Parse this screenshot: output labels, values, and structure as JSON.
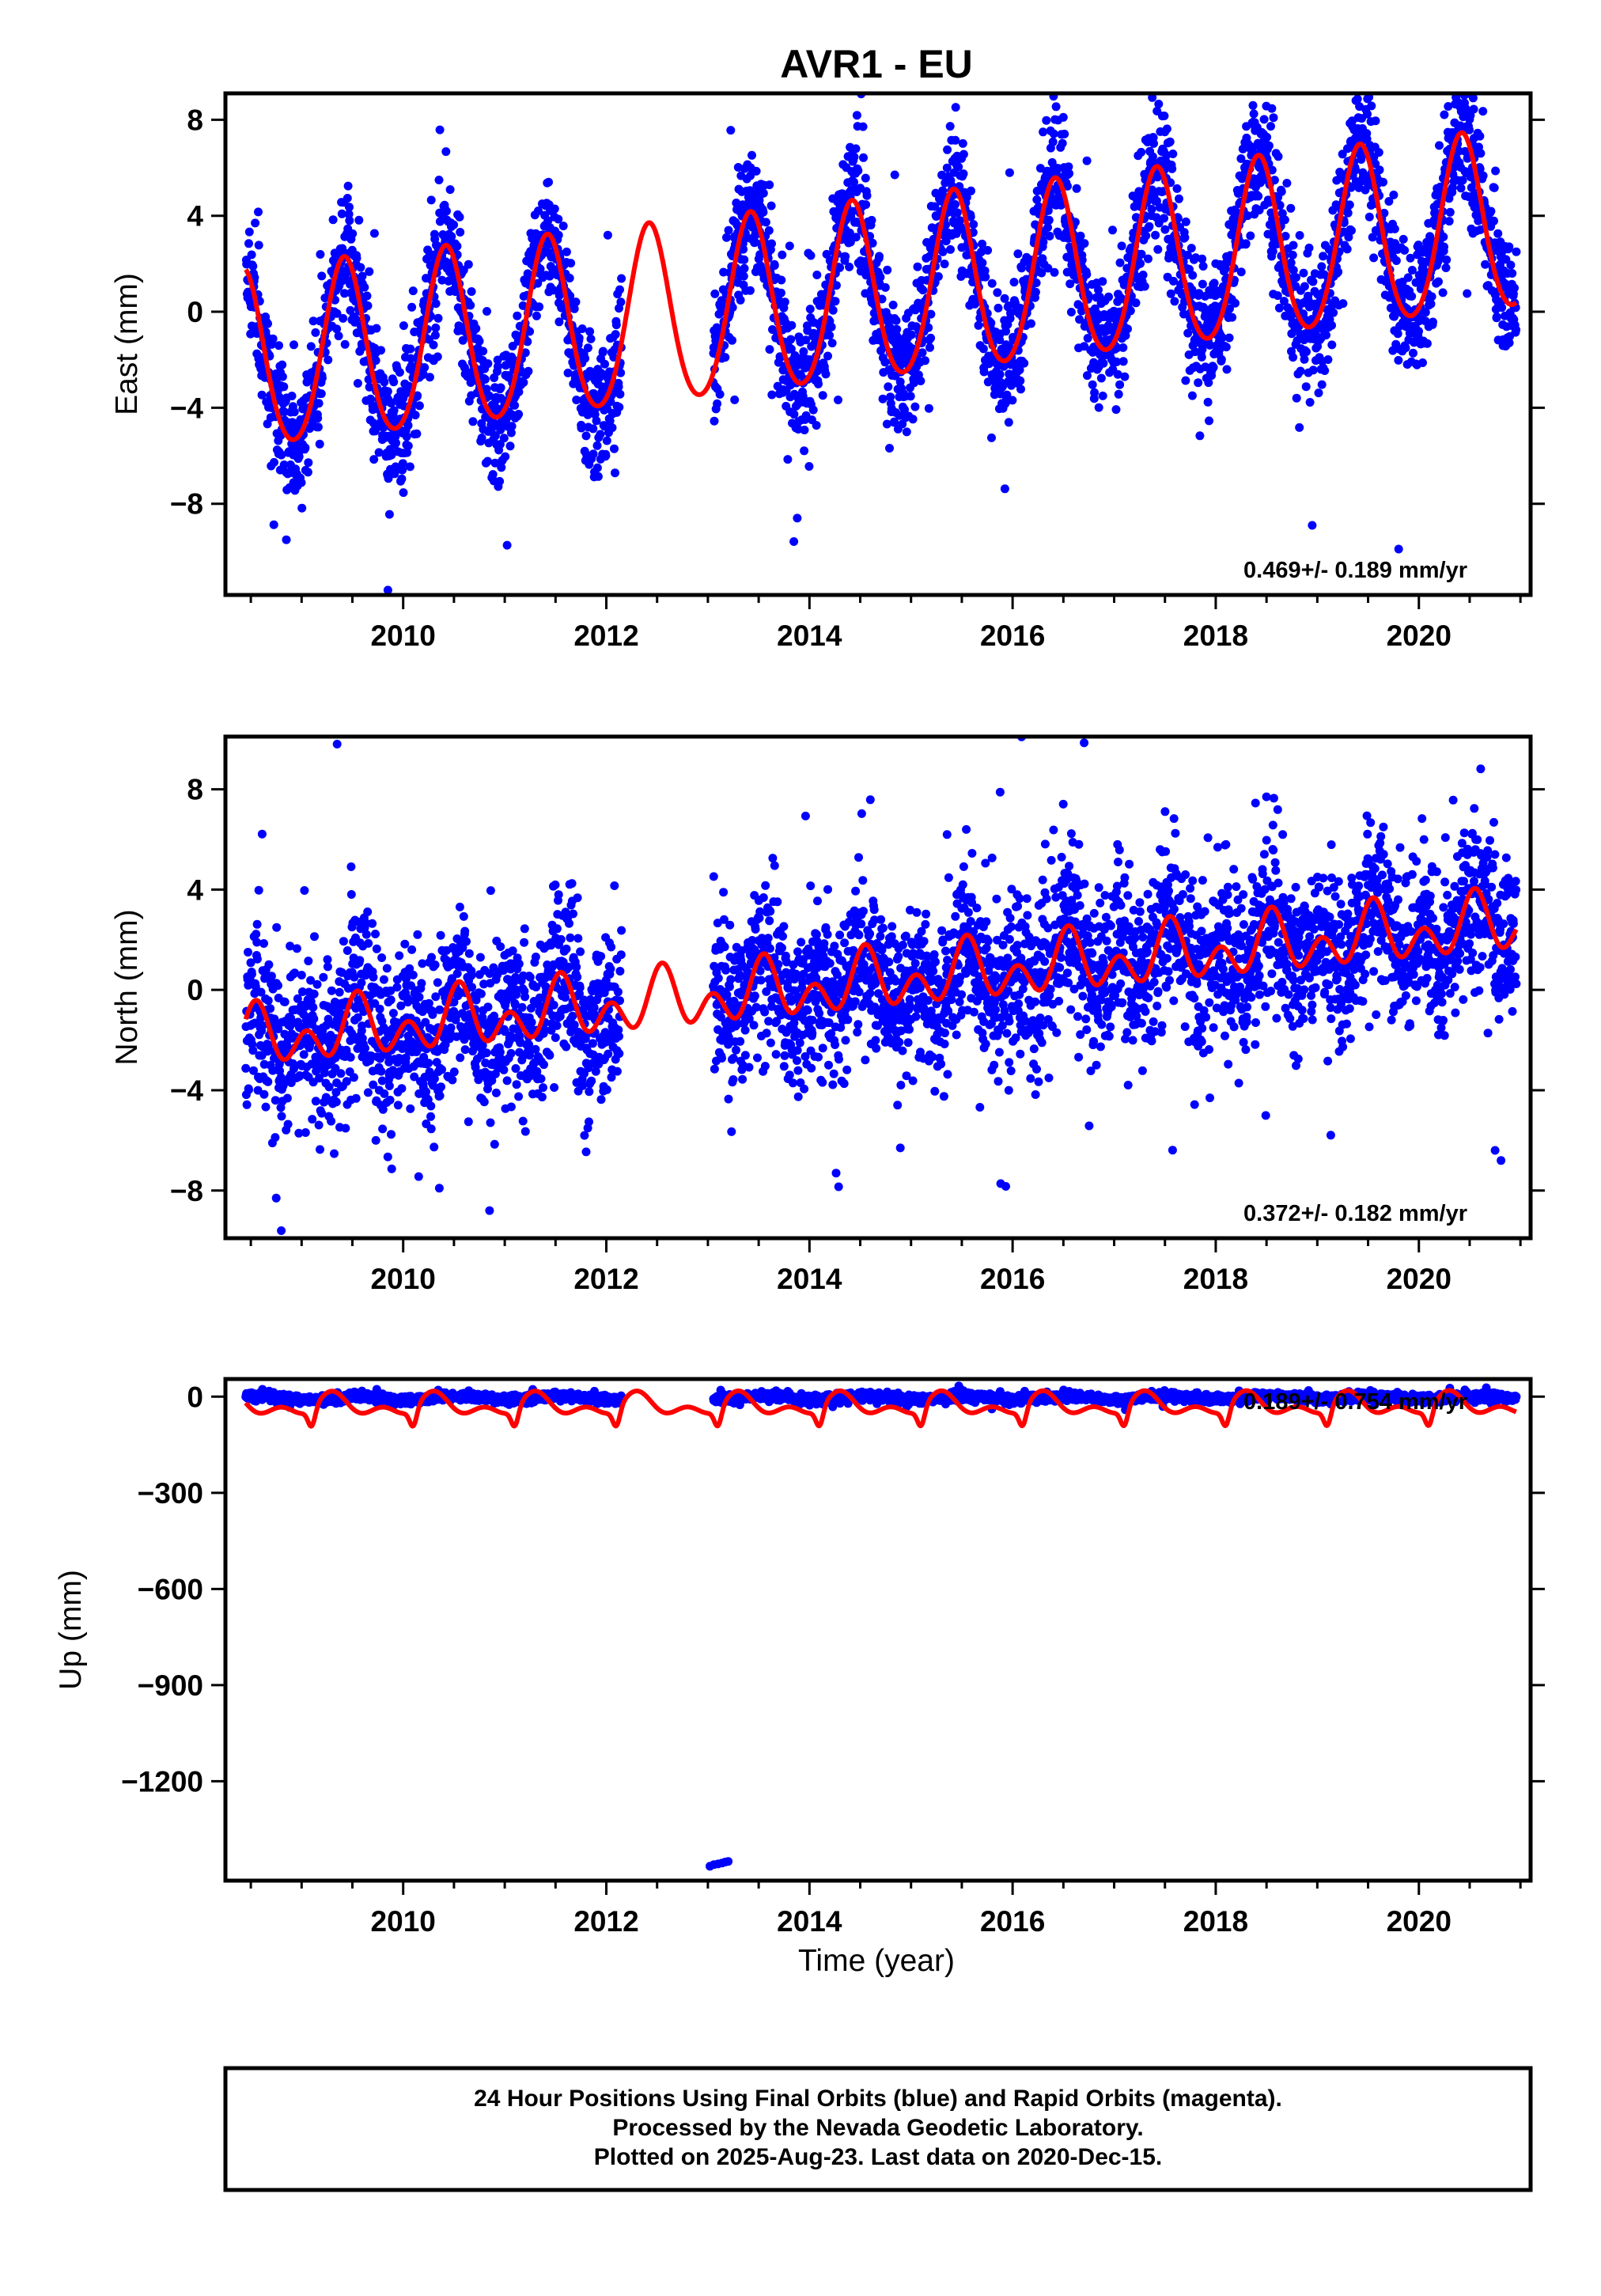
{
  "title": "AVR1 - EU",
  "x_axis": {
    "label": "Time (year)",
    "ticks": [
      2010,
      2012,
      2014,
      2016,
      2018,
      2020
    ],
    "range": [
      2008.25,
      2021.1
    ]
  },
  "colors": {
    "final_orbits": "#0000ff",
    "model_fit": "#ff0000",
    "frame": "#000000"
  },
  "chart_data": [
    {
      "type": "scatter",
      "component": "East",
      "ylabel": "East (mm)",
      "yticks": [
        8,
        4,
        0,
        -4,
        -8
      ],
      "ylim": [
        -11.8,
        9.1
      ],
      "rate_text": "0.469+/- 0.189 mm/yr",
      "data_span": [
        2008.45,
        2020.96
      ],
      "gap": [
        2012.15,
        2013.05
      ],
      "series": [
        {
          "name": "Final Orbits (blue)",
          "model": {
            "offset": -2.2,
            "trend": 0.469,
            "annual_amp": 3.7,
            "annual_peak": 0.42,
            "semi_amp": 0.35,
            "noise": 1.3
          }
        },
        {
          "name": "model fit",
          "model": {
            "offset": -2.2,
            "trend": 0.469,
            "annual_amp": 3.7,
            "annual_peak": 0.42,
            "semi_amp": 0.35
          }
        }
      ],
      "outliers": [
        [
          2008.85,
          -9.5
        ],
        [
          2009.85,
          -11.6
        ],
        [
          2013.88,
          -8.6
        ],
        [
          2018.95,
          -8.9
        ],
        [
          2016.5,
          8.1
        ],
        [
          2020.45,
          8.7
        ]
      ]
    },
    {
      "type": "scatter",
      "component": "North",
      "ylabel": "North (mm)",
      "yticks": [
        8,
        4,
        0,
        -4,
        -8
      ],
      "ylim": [
        -9.9,
        10.1
      ],
      "rate_text": "0.372+/- 0.182 mm/yr",
      "data_span": [
        2008.45,
        2020.96
      ],
      "gap": [
        2012.15,
        2013.05
      ],
      "series": [
        {
          "name": "Final Orbits (blue)",
          "model": {
            "offset": -2.0,
            "trend": 0.372,
            "annual_amp": 0.7,
            "annual_peak": 0.55,
            "semi_amp": 0.85,
            "noise": 1.6
          }
        },
        {
          "name": "model fit",
          "model": {
            "offset": -2.0,
            "trend": 0.372,
            "annual_amp": 0.7,
            "annual_peak": 0.55,
            "semi_amp": 0.85
          }
        }
      ],
      "outliers": [
        [
          2009.35,
          9.8
        ],
        [
          2008.8,
          -9.6
        ],
        [
          2008.75,
          -8.3
        ],
        [
          2010.85,
          -8.8
        ],
        [
          2018.5,
          7.7
        ],
        [
          2020.75,
          -6.4
        ]
      ]
    },
    {
      "type": "scatter",
      "component": "Up",
      "ylabel": "Up (mm)",
      "yticks": [
        0,
        -300,
        -600,
        -900,
        -1200
      ],
      "ylim": [
        -1510,
        55
      ],
      "rate_text": "0.189+/- 0.754 mm/yr",
      "data_span": [
        2008.45,
        2020.96
      ],
      "gap": [
        2012.15,
        2013.05
      ],
      "series": [
        {
          "name": "Final Orbits (blue)",
          "model": {
            "offset": -5,
            "trend": 0.189,
            "annual_amp": 5,
            "annual_peak": 0.55,
            "semi_amp": 0,
            "noise": 6
          }
        },
        {
          "name": "model fit",
          "model": {
            "offset": -28,
            "trend": 0.189,
            "annual_amp": 25,
            "annual_peak": 0.3,
            "semi_amp": 20,
            "dip_amp": 55,
            "dip_center": 0.1
          }
        }
      ],
      "outliers": [
        [
          2013.02,
          -1465
        ],
        [
          2013.06,
          -1460
        ],
        [
          2013.1,
          -1458
        ],
        [
          2013.14,
          -1455
        ],
        [
          2013.17,
          -1452
        ],
        [
          2013.2,
          -1450
        ]
      ]
    }
  ],
  "footer": {
    "line1": "24 Hour Positions Using Final Orbits (blue) and Rapid Orbits (magenta).",
    "line2": "Processed by the Nevada Geodetic Laboratory.",
    "line3": "Plotted on 2025-Aug-23. Last data on 2020-Dec-15."
  }
}
